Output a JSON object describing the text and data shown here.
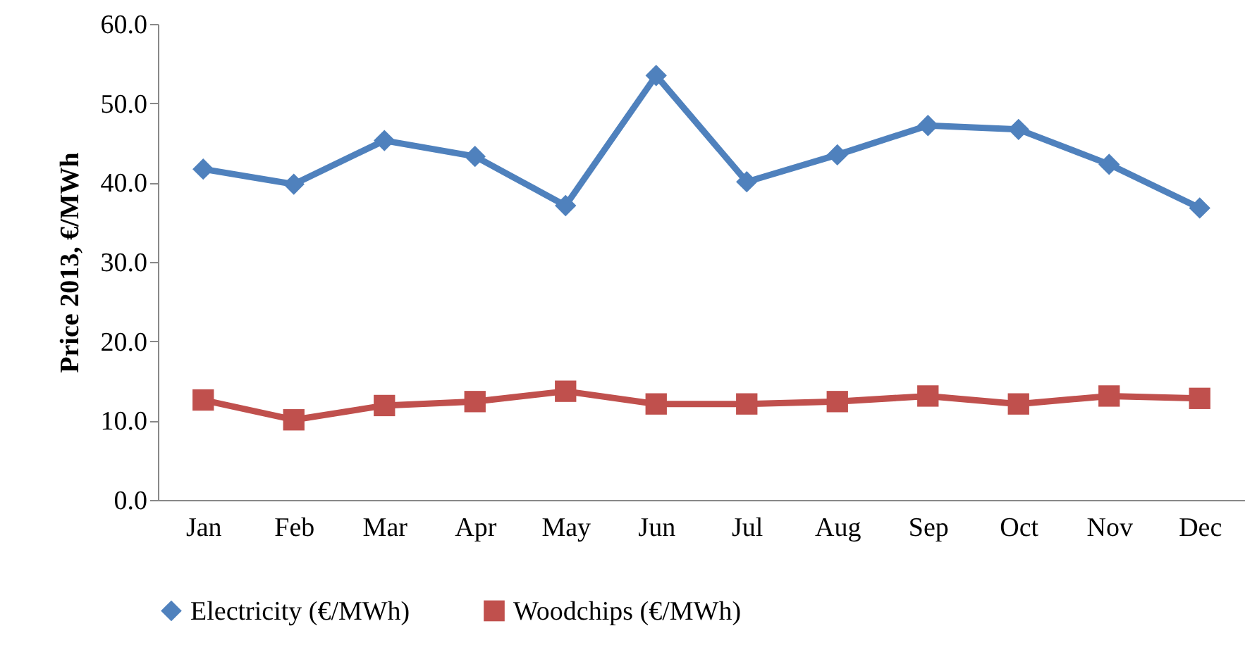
{
  "chart_data": {
    "type": "line",
    "ylabel": "Price 2013, €/MWh",
    "categories": [
      "Jan",
      "Feb",
      "Mar",
      "Apr",
      "May",
      "Jun",
      "Jul",
      "Aug",
      "Sep",
      "Oct",
      "Nov",
      "Dec"
    ],
    "series": [
      {
        "name": "Electricity (€/MWh)",
        "color": "#4f81bd",
        "marker": "diamond",
        "values": [
          41.7,
          39.8,
          45.3,
          43.3,
          37.1,
          53.5,
          40.1,
          43.5,
          47.2,
          46.7,
          42.3,
          36.8
        ]
      },
      {
        "name": "Woodchips (€/MWh)",
        "color": "#c0504d",
        "marker": "square",
        "values": [
          12.6,
          10.1,
          11.9,
          12.4,
          13.7,
          12.1,
          12.1,
          12.4,
          13.1,
          12.1,
          13.1,
          12.8
        ]
      }
    ],
    "ylim": [
      0,
      60
    ],
    "yticks": [
      {
        "value": 0,
        "label": "0.0"
      },
      {
        "value": 10,
        "label": "10.0"
      },
      {
        "value": 20,
        "label": "20.0"
      },
      {
        "value": 30,
        "label": "30.0"
      },
      {
        "value": 40,
        "label": "40.0"
      },
      {
        "value": 50,
        "label": "50.0"
      },
      {
        "value": 60,
        "label": "60.0"
      }
    ],
    "grid": false,
    "legend": "bottom",
    "line_style": "solid"
  }
}
